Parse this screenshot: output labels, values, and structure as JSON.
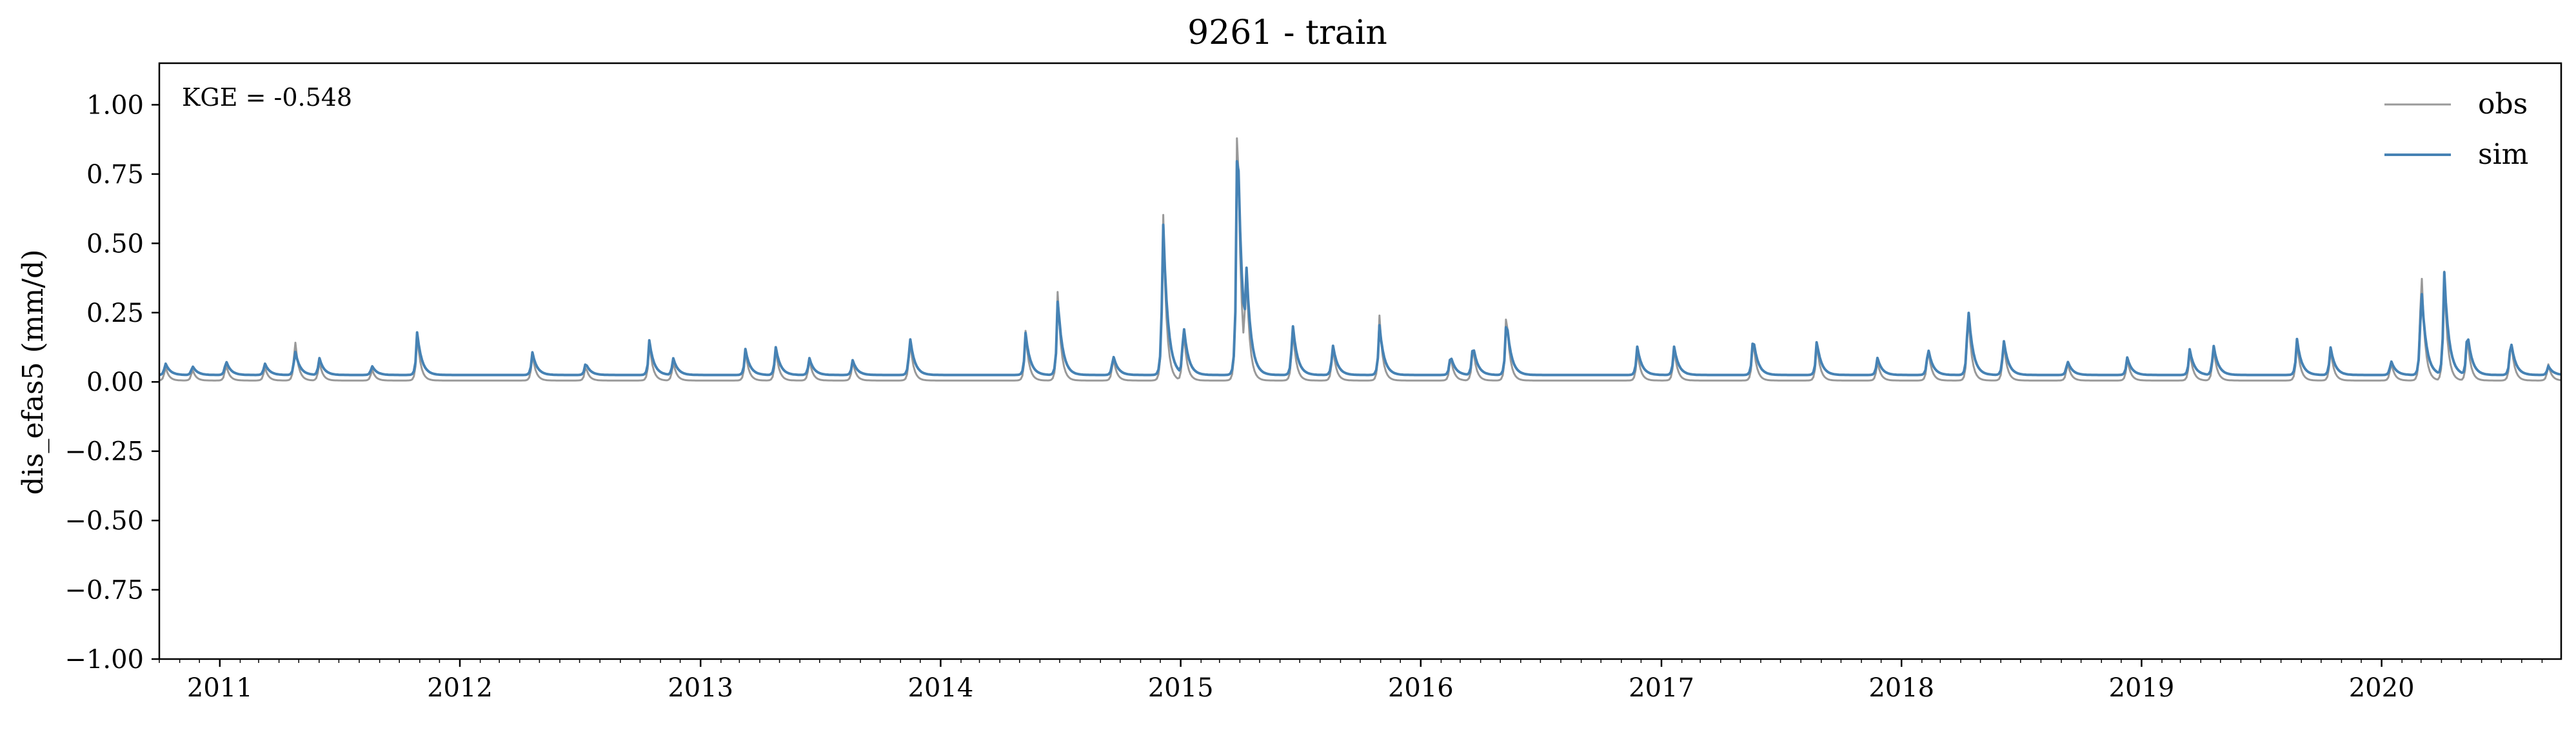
{
  "chart_data": {
    "type": "line",
    "title": "9261 - train",
    "xlabel": "",
    "ylabel": "dis_efas5 (mm/d)",
    "annotation": "KGE = -0.548",
    "xlim": [
      "2010-10-01",
      "2020-09-30"
    ],
    "ylim": [
      -1.0,
      1.15
    ],
    "yticks": [
      1.0,
      0.75,
      0.5,
      0.25,
      0.0,
      -0.25,
      -0.5,
      -0.75,
      -1.0
    ],
    "ytick_labels": [
      "1.00",
      "0.75",
      "0.50",
      "0.25",
      "0.00",
      "−0.25",
      "−0.50",
      "−0.75",
      "−1.00"
    ],
    "xticks": [
      "2011-01-01",
      "2012-01-01",
      "2013-01-01",
      "2014-01-01",
      "2015-01-01",
      "2016-01-01",
      "2017-01-01",
      "2018-01-01",
      "2019-01-01",
      "2020-01-01"
    ],
    "xtick_labels": [
      "2011",
      "2012",
      "2013",
      "2014",
      "2015",
      "2016",
      "2017",
      "2018",
      "2019",
      "2020"
    ],
    "legend_position": "top-right",
    "grid": false,
    "series": [
      {
        "name": "obs",
        "color": "#999999",
        "baseline": 0.005,
        "peaks": [
          [
            "2010-10-10",
            0.06
          ],
          [
            "2010-11-20",
            0.05
          ],
          [
            "2011-01-10",
            0.07
          ],
          [
            "2011-03-10",
            0.06
          ],
          [
            "2011-04-25",
            0.17
          ],
          [
            "2011-06-01",
            0.08
          ],
          [
            "2011-08-20",
            0.05
          ],
          [
            "2011-10-28",
            0.18
          ],
          [
            "2012-04-20",
            0.11
          ],
          [
            "2012-07-10",
            0.06
          ],
          [
            "2012-10-15",
            0.15
          ],
          [
            "2012-11-20",
            0.08
          ],
          [
            "2013-03-10",
            0.12
          ],
          [
            "2013-04-25",
            0.13
          ],
          [
            "2013-06-15",
            0.09
          ],
          [
            "2013-08-20",
            0.08
          ],
          [
            "2013-11-15",
            0.17
          ],
          [
            "2014-05-10",
            0.19
          ],
          [
            "2014-06-28",
            0.35
          ],
          [
            "2014-09-20",
            0.1
          ],
          [
            "2014-12-05",
            0.67
          ],
          [
            "2015-01-05",
            0.21
          ],
          [
            "2015-03-28",
            1.11
          ],
          [
            "2015-04-10",
            0.5
          ],
          [
            "2015-06-20",
            0.22
          ],
          [
            "2015-08-20",
            0.14
          ],
          [
            "2015-10-30",
            0.25
          ],
          [
            "2016-02-15",
            0.1
          ],
          [
            "2016-03-20",
            0.14
          ],
          [
            "2016-05-10",
            0.28
          ],
          [
            "2016-11-25",
            0.12
          ],
          [
            "2017-01-20",
            0.13
          ],
          [
            "2017-05-20",
            0.17
          ],
          [
            "2017-08-25",
            0.15
          ],
          [
            "2017-11-25",
            0.08
          ],
          [
            "2018-02-10",
            0.14
          ],
          [
            "2018-04-12",
            0.29
          ],
          [
            "2018-06-05",
            0.16
          ],
          [
            "2018-09-10",
            0.08
          ],
          [
            "2018-12-10",
            0.09
          ],
          [
            "2019-03-15",
            0.12
          ],
          [
            "2019-04-20",
            0.14
          ],
          [
            "2019-08-25",
            0.16
          ],
          [
            "2019-10-15",
            0.13
          ],
          [
            "2020-01-15",
            0.08
          ],
          [
            "2020-03-01",
            0.47
          ],
          [
            "2020-04-05",
            0.42
          ],
          [
            "2020-05-10",
            0.18
          ],
          [
            "2020-07-15",
            0.18
          ],
          [
            "2020-09-10",
            0.07
          ]
        ]
      },
      {
        "name": "sim",
        "color": "#4682b4",
        "baseline": 0.025,
        "peaks": [
          [
            "2010-10-10",
            0.07
          ],
          [
            "2010-11-20",
            0.06
          ],
          [
            "2011-01-10",
            0.08
          ],
          [
            "2011-03-10",
            0.07
          ],
          [
            "2011-04-25",
            0.12
          ],
          [
            "2011-06-01",
            0.09
          ],
          [
            "2011-08-20",
            0.06
          ],
          [
            "2011-10-28",
            0.18
          ],
          [
            "2012-04-20",
            0.11
          ],
          [
            "2012-07-10",
            0.07
          ],
          [
            "2012-10-15",
            0.15
          ],
          [
            "2012-11-20",
            0.09
          ],
          [
            "2013-03-10",
            0.12
          ],
          [
            "2013-04-25",
            0.13
          ],
          [
            "2013-06-15",
            0.09
          ],
          [
            "2013-08-20",
            0.08
          ],
          [
            "2013-11-15",
            0.17
          ],
          [
            "2014-05-10",
            0.18
          ],
          [
            "2014-06-28",
            0.31
          ],
          [
            "2014-09-20",
            0.1
          ],
          [
            "2014-12-05",
            0.61
          ],
          [
            "2015-01-05",
            0.22
          ],
          [
            "2015-03-28",
            1.0
          ],
          [
            "2015-04-10",
            0.48
          ],
          [
            "2015-06-20",
            0.22
          ],
          [
            "2015-08-20",
            0.14
          ],
          [
            "2015-10-30",
            0.21
          ],
          [
            "2016-02-15",
            0.1
          ],
          [
            "2016-03-20",
            0.14
          ],
          [
            "2016-05-10",
            0.24
          ],
          [
            "2016-11-25",
            0.13
          ],
          [
            "2017-01-20",
            0.13
          ],
          [
            "2017-05-20",
            0.17
          ],
          [
            "2017-08-25",
            0.15
          ],
          [
            "2017-11-25",
            0.09
          ],
          [
            "2018-02-10",
            0.13
          ],
          [
            "2018-04-12",
            0.29
          ],
          [
            "2018-06-05",
            0.16
          ],
          [
            "2018-09-10",
            0.08
          ],
          [
            "2018-12-10",
            0.09
          ],
          [
            "2019-03-15",
            0.12
          ],
          [
            "2019-04-20",
            0.14
          ],
          [
            "2019-08-25",
            0.16
          ],
          [
            "2019-10-15",
            0.13
          ],
          [
            "2020-01-15",
            0.08
          ],
          [
            "2020-03-01",
            0.37
          ],
          [
            "2020-04-05",
            0.41
          ],
          [
            "2020-05-10",
            0.19
          ],
          [
            "2020-07-15",
            0.16
          ],
          [
            "2020-09-10",
            0.06
          ]
        ]
      }
    ]
  }
}
